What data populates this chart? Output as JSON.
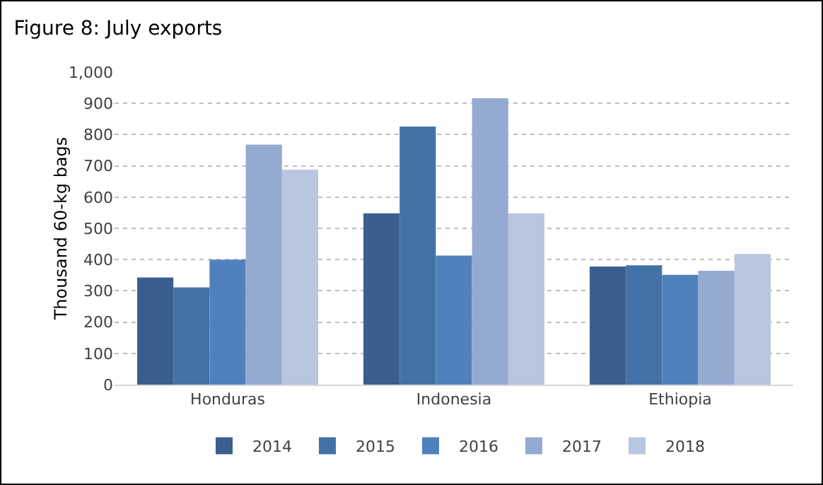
{
  "chart_data": {
    "type": "bar",
    "title": "Figure 8: July exports",
    "ylabel": "Thousand 60-kg bags",
    "categories": [
      "Honduras",
      "Indonesia",
      "Ethiopia"
    ],
    "series": [
      {
        "name": "2014",
        "color": "#3a5f8f",
        "values": [
          343,
          548,
          378
        ]
      },
      {
        "name": "2015",
        "color": "#4472a6",
        "values": [
          311,
          826,
          382
        ]
      },
      {
        "name": "2016",
        "color": "#4f81bd",
        "values": [
          400,
          413,
          351
        ]
      },
      {
        "name": "2017",
        "color": "#95aad1",
        "values": [
          768,
          916,
          364
        ]
      },
      {
        "name": "2018",
        "color": "#b9c6df",
        "values": [
          688,
          548,
          418
        ]
      }
    ],
    "ylim": [
      0,
      1000
    ],
    "yticks": [
      0,
      100,
      200,
      300,
      400,
      500,
      600,
      700,
      800,
      900,
      {
        "value": 1000,
        "label": "1,000"
      }
    ],
    "grid": "y",
    "legend": "bottom"
  }
}
